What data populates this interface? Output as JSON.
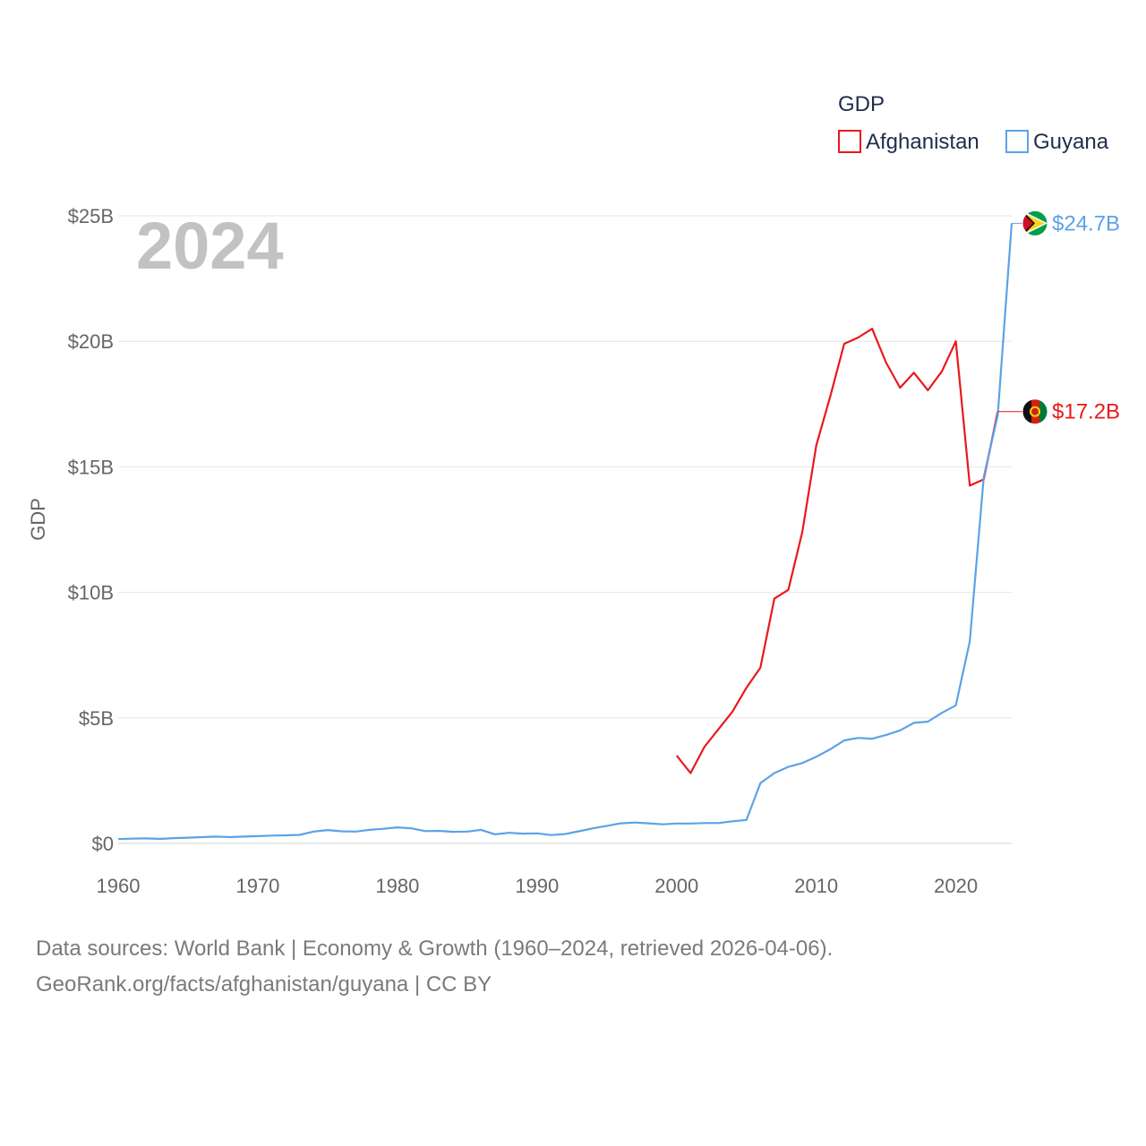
{
  "chart_data": {
    "type": "line",
    "title": "",
    "year_badge": "2024",
    "xlabel": "",
    "ylabel": "GDP",
    "xlim": [
      1960,
      2024
    ],
    "ylim": [
      0,
      25
    ],
    "x_ticks": [
      1960,
      1970,
      1980,
      1990,
      2000,
      2010,
      2020
    ],
    "y_ticks": [
      {
        "value": 0,
        "label": "$0"
      },
      {
        "value": 5,
        "label": "$5B"
      },
      {
        "value": 10,
        "label": "$10B"
      },
      {
        "value": 15,
        "label": "$15B"
      },
      {
        "value": 20,
        "label": "$20B"
      },
      {
        "value": 25,
        "label": "$25B"
      }
    ],
    "grid": true,
    "legend": {
      "title": "GDP",
      "position": "top-right"
    },
    "units": "billions USD",
    "series": [
      {
        "name": "Afghanistan",
        "color": "#e8191c",
        "end_label": "$17.2B",
        "end_value": 17.2,
        "flag": "afghanistan-flag",
        "x": [
          2000,
          2001,
          2002,
          2003,
          2004,
          2005,
          2006,
          2007,
          2008,
          2009,
          2010,
          2011,
          2012,
          2013,
          2014,
          2015,
          2016,
          2017,
          2018,
          2019,
          2020,
          2021,
          2022,
          2023
        ],
        "values": [
          3.5,
          2.8,
          3.85,
          4.55,
          5.25,
          6.2,
          7.0,
          9.75,
          10.1,
          12.4,
          15.85,
          17.8,
          19.9,
          20.15,
          20.5,
          19.15,
          18.15,
          18.75,
          18.05,
          18.8,
          20.0,
          14.25,
          14.5,
          17.2
        ]
      },
      {
        "name": "Guyana",
        "color": "#5ba3e6",
        "end_label": "$24.7B",
        "end_value": 24.7,
        "flag": "guyana-flag",
        "x": [
          1960,
          1961,
          1962,
          1963,
          1964,
          1965,
          1966,
          1967,
          1968,
          1969,
          1970,
          1971,
          1972,
          1973,
          1974,
          1975,
          1976,
          1977,
          1978,
          1979,
          1980,
          1981,
          1982,
          1983,
          1984,
          1985,
          1986,
          1987,
          1988,
          1989,
          1990,
          1991,
          1992,
          1993,
          1994,
          1995,
          1996,
          1997,
          1998,
          1999,
          2000,
          2001,
          2002,
          2003,
          2004,
          2005,
          2006,
          2007,
          2008,
          2009,
          2010,
          2011,
          2012,
          2013,
          2014,
          2015,
          2016,
          2017,
          2018,
          2019,
          2020,
          2021,
          2022,
          2023,
          2024
        ],
        "values": [
          0.17,
          0.19,
          0.2,
          0.18,
          0.21,
          0.23,
          0.25,
          0.27,
          0.25,
          0.27,
          0.29,
          0.31,
          0.32,
          0.34,
          0.47,
          0.53,
          0.48,
          0.47,
          0.54,
          0.58,
          0.64,
          0.6,
          0.49,
          0.5,
          0.46,
          0.47,
          0.54,
          0.36,
          0.42,
          0.39,
          0.4,
          0.33,
          0.37,
          0.48,
          0.6,
          0.7,
          0.8,
          0.83,
          0.8,
          0.76,
          0.79,
          0.79,
          0.81,
          0.81,
          0.88,
          0.93,
          2.4,
          2.8,
          3.05,
          3.2,
          3.45,
          3.75,
          4.1,
          4.2,
          4.17,
          4.32,
          4.5,
          4.8,
          4.85,
          5.2,
          5.5,
          8.05,
          14.6,
          17.05,
          24.7
        ]
      }
    ]
  },
  "footer": {
    "line1": "Data sources: World Bank | Economy & Growth (1960–2024, retrieved 2026-04-06).",
    "line2": "GeoRank.org/facts/afghanistan/guyana | CC BY"
  }
}
